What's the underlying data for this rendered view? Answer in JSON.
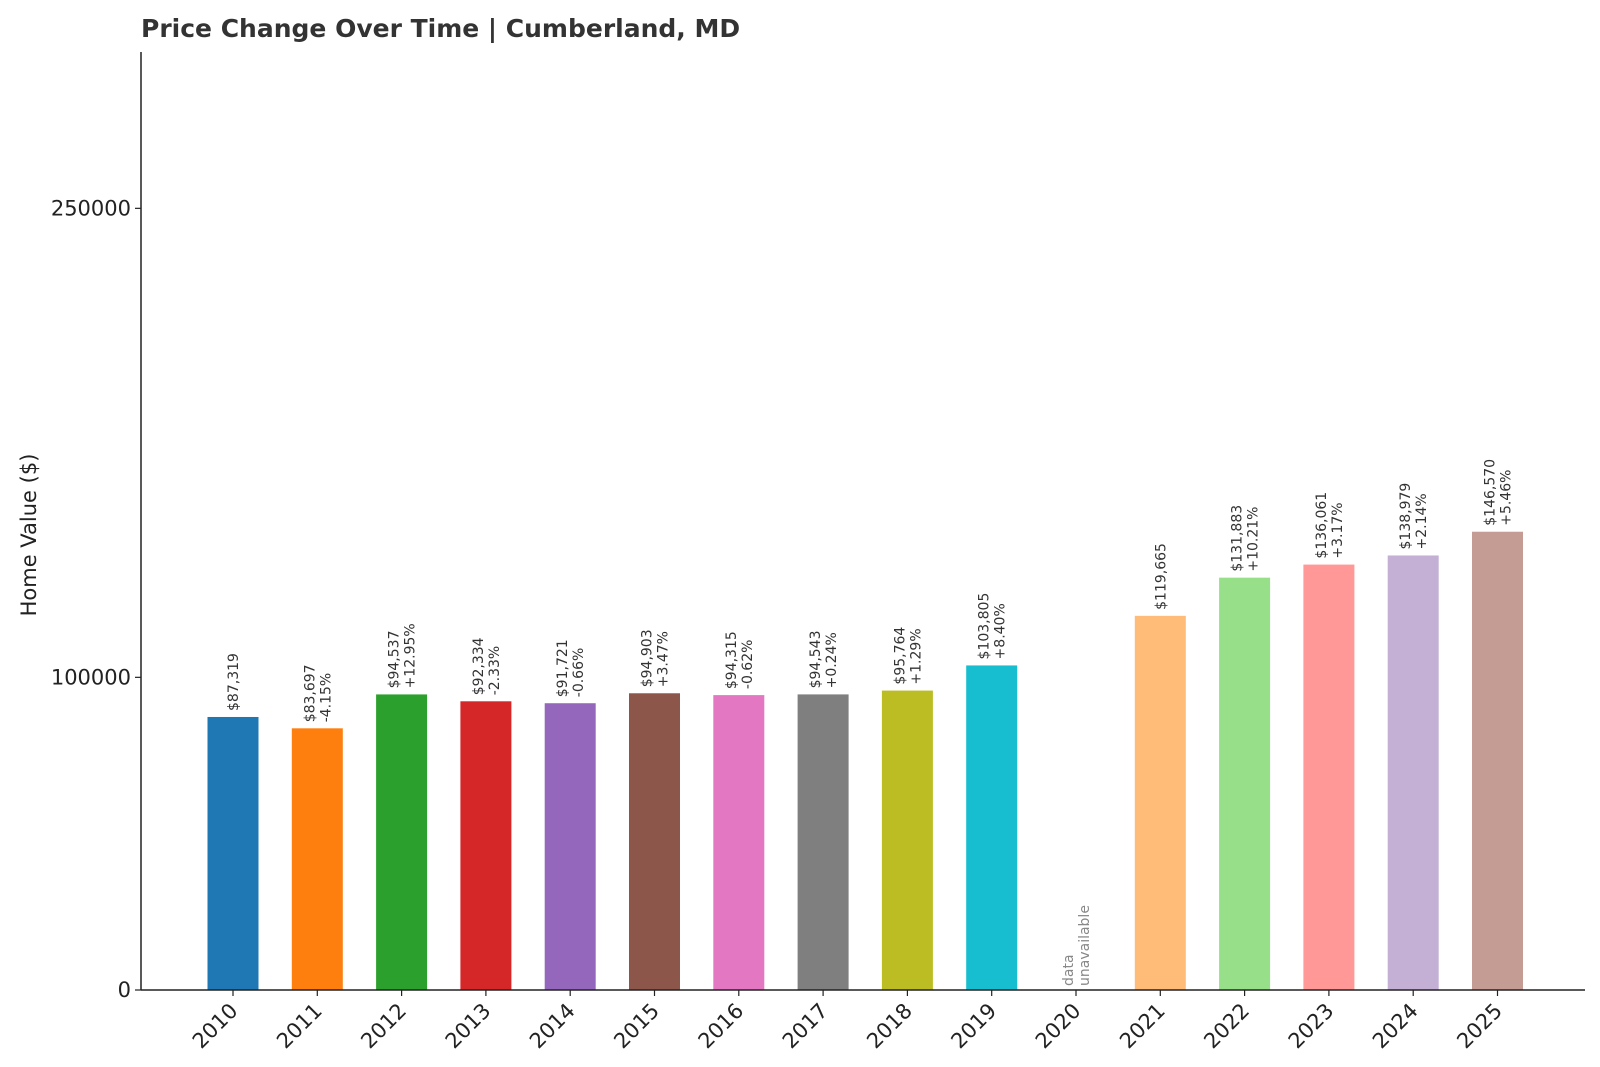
{
  "chart_data": {
    "type": "bar",
    "title": "Price Change Over Time | Cumberland, MD",
    "xlabel": "",
    "ylabel": "Home Value ($)",
    "ylim": [
      0,
      300000
    ],
    "yticks": [
      0,
      100000,
      250000
    ],
    "grid": false,
    "categories": [
      "2010",
      "2011",
      "2012",
      "2013",
      "2014",
      "2015",
      "2016",
      "2017",
      "2018",
      "2019",
      "2020",
      "2021",
      "2022",
      "2023",
      "2024",
      "2025"
    ],
    "values": [
      87319,
      83697,
      94537,
      92334,
      91721,
      94903,
      94315,
      94543,
      95764,
      103805,
      null,
      119665,
      131883,
      136061,
      138979,
      146570
    ],
    "value_labels": [
      "$87,319",
      "$83,697",
      "$94,537",
      "$92,334",
      "$91,721",
      "$94,903",
      "$94,315",
      "$94,543",
      "$95,764",
      "$103,805",
      "",
      "$119,665",
      "$131,883",
      "$136,061",
      "$138,979",
      "$146,570"
    ],
    "change_labels": [
      "",
      "-4.15%",
      "+12.95%",
      "-2.33%",
      "-0.66%",
      "+3.47%",
      "-0.62%",
      "+0.24%",
      "+1.29%",
      "+8.40%",
      "",
      "",
      "+10.21%",
      "+3.17%",
      "+2.14%",
      "+5.46%"
    ],
    "missing_label": [
      "data",
      "unavailable"
    ],
    "colors": [
      "#1f77b4",
      "#ff7f0e",
      "#2ca02c",
      "#d62728",
      "#9467bd",
      "#8c564b",
      "#e377c2",
      "#7f7f7f",
      "#bcbd22",
      "#17becf",
      "#aec7e8",
      "#ffbb78",
      "#98df8a",
      "#ff9896",
      "#c5b0d5",
      "#c49c94"
    ]
  }
}
